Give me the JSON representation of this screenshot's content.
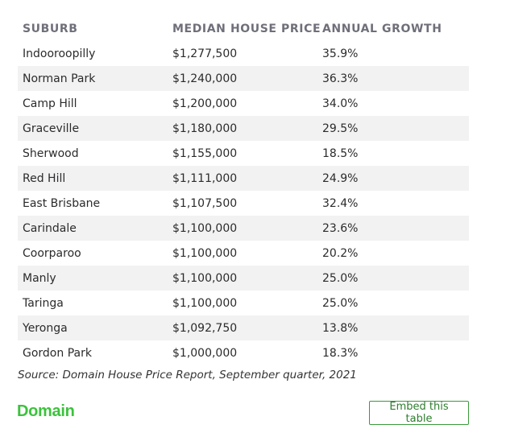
{
  "table": {
    "headers": [
      "SUBURB",
      "MEDIAN HOUSE PRICE",
      "ANNUAL GROWTH"
    ],
    "rows": [
      [
        "Indooroopilly",
        "$1,277,500",
        "35.9%"
      ],
      [
        "Norman Park",
        "$1,240,000",
        "36.3%"
      ],
      [
        "Camp Hill",
        "$1,200,000",
        "34.0%"
      ],
      [
        "Graceville",
        "$1,180,000",
        "29.5%"
      ],
      [
        "Sherwood",
        "$1,155,000",
        "18.5%"
      ],
      [
        "Red Hill",
        "$1,111,000",
        "24.9%"
      ],
      [
        "East Brisbane",
        "$1,107,500",
        "32.4%"
      ],
      [
        "Carindale",
        "$1,100,000",
        "23.6%"
      ],
      [
        "Coorparoo",
        "$1,100,000",
        "20.2%"
      ],
      [
        "Manly",
        "$1,100,000",
        "25.0%"
      ],
      [
        "Taringa",
        "$1,100,000",
        "25.0%"
      ],
      [
        "Yeronga",
        "$1,092,750",
        "13.8%"
      ],
      [
        "Gordon Park",
        "$1,000,000",
        "18.3%"
      ]
    ]
  },
  "source": "Source: Domain House Price Report, September quarter, 2021",
  "footer": {
    "logo_text": "Domain",
    "embed_label": "Embed this table"
  },
  "colors": {
    "brand_green": "#3cc23c",
    "button_border": "#3a9a3a",
    "stripe": "#f2f2f3",
    "header_text": "#6f6f7a"
  }
}
